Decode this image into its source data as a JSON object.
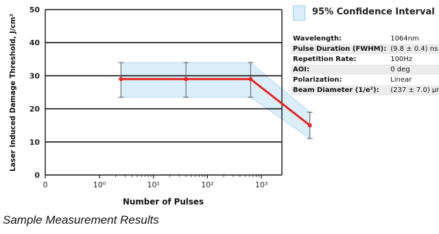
{
  "chart_data": {
    "type": "line",
    "title": "",
    "xlabel": "Number of Pulses",
    "ylabel": "Laser Induced Damage Threshold, J/cm²",
    "ylim": [
      0,
      50
    ],
    "yticks": [
      0,
      10,
      20,
      30,
      40,
      50
    ],
    "xticks": [
      "0",
      "10⁰",
      "10¹",
      "10²",
      "10³"
    ],
    "x_scale": "log",
    "grid": "horizontal",
    "series": [
      {
        "x": [
          2.5,
          40,
          630,
          7900
        ],
        "y": [
          29,
          29,
          29,
          15
        ],
        "error_low": [
          23.5,
          23.5,
          23.5,
          11
        ],
        "error_high": [
          34,
          34,
          34,
          19
        ],
        "color": "#e8231f"
      }
    ],
    "confidence_band": {
      "lower": [
        23.5,
        23.5,
        23.5,
        11
      ],
      "upper": [
        34,
        34,
        34,
        19
      ],
      "color": "#d9eef9"
    },
    "legend": {
      "label": "95% Confidence Interval",
      "placement": "top-right"
    }
  },
  "params": [
    {
      "key": "Wavelength:",
      "value": "1064nm"
    },
    {
      "key": "Pulse Duration (FWHM):",
      "value": "(9.8 ± 0.4) ns"
    },
    {
      "key": "Repetition Rate:",
      "value": "100Hz"
    },
    {
      "key": "AOI:",
      "value": "0 deg"
    },
    {
      "key": "Polarization:",
      "value": "Linear"
    },
    {
      "key": "Beam Diameter (1/e²):",
      "value": "(237 ± 7.0) µm"
    }
  ],
  "caption": "Sample Measurement Results"
}
